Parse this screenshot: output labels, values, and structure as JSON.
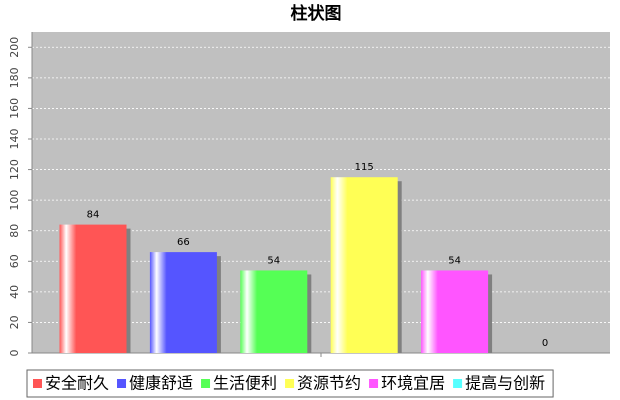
{
  "chart_data": {
    "type": "bar",
    "title": "柱状图",
    "categories": [
      "安全耐久",
      "健康舒适",
      "生活便利",
      "资源节约",
      "环境宜居",
      "提高与创新"
    ],
    "values": [
      84,
      66,
      54,
      115,
      54,
      0
    ],
    "colors": [
      "#ff5555",
      "#5555ff",
      "#55ff55",
      "#ffff55",
      "#ff55ff",
      "#55ffff"
    ],
    "ylim": [
      0,
      210
    ],
    "yticks": [
      0,
      20,
      40,
      60,
      80,
      100,
      120,
      140,
      160,
      180,
      200
    ],
    "grid": true,
    "legend": "bottom"
  }
}
